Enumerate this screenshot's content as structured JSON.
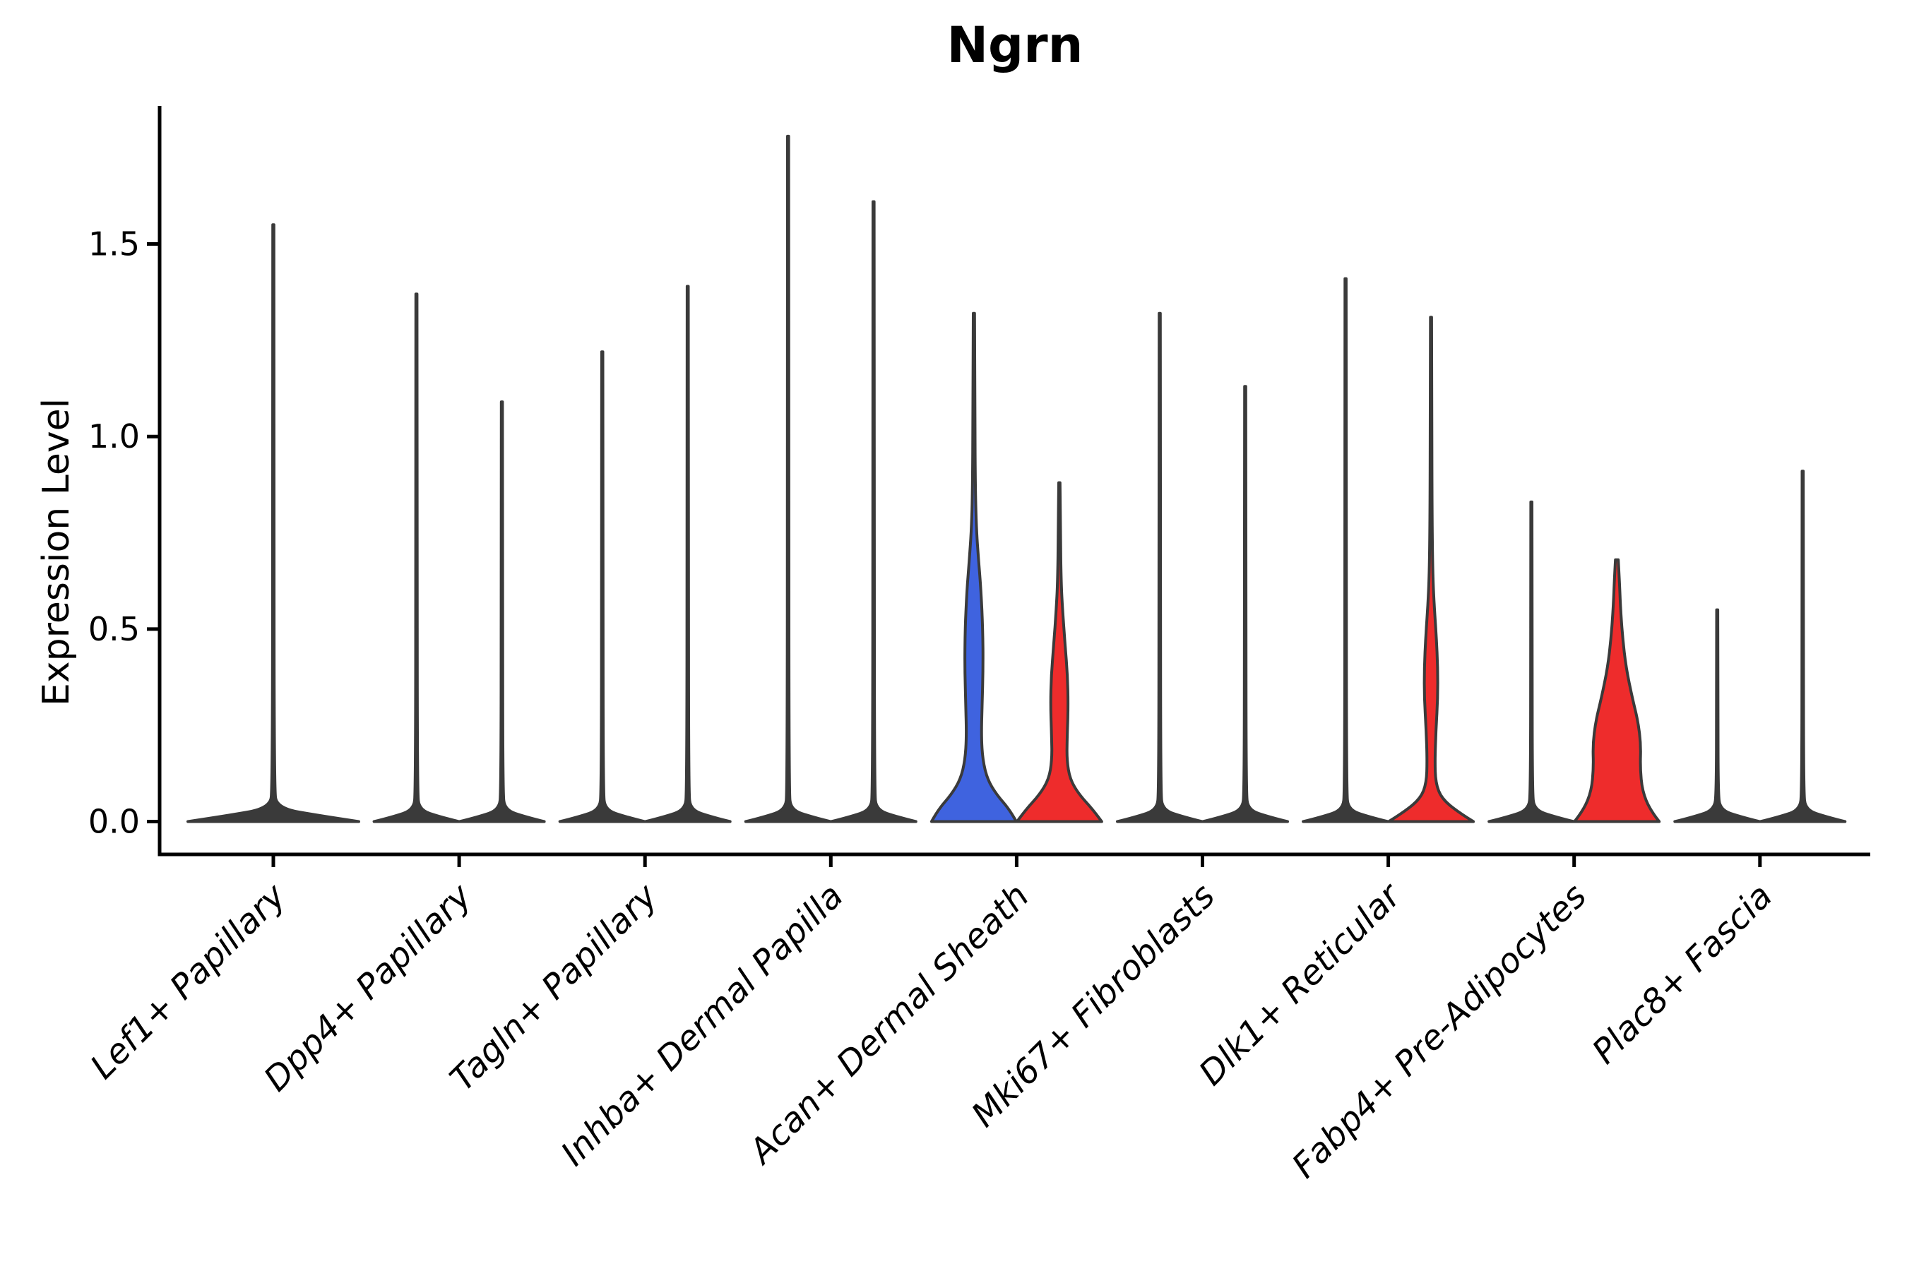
{
  "title": "Ngrn",
  "chart_data": {
    "type": "violin",
    "title": "Ngrn",
    "xlabel": "",
    "ylabel": "Expression Level",
    "y_ticks": [
      "0.0",
      "0.5",
      "1.0",
      "1.5"
    ],
    "ylim": [
      -0.09,
      1.86
    ],
    "grid": false,
    "legend_position": "none",
    "colors": {
      "highlight_blue": "#3F63DF",
      "highlight_red": "#EE2C2C",
      "violin_default": "#3A3A3A",
      "outline": "#3A3A3A",
      "axis": "#000000"
    },
    "categories": [
      {
        "label": "Lef1+ Papillary",
        "violins": [
          {
            "side": "center",
            "color": "#3A3A3A",
            "max_expression": 1.55,
            "width_profile": [
              [
                0,
                121
              ],
              [
                0.015,
                66
              ],
              [
                0.035,
                5
              ],
              [
                0.09,
                1.3
              ],
              [
                0.85,
                1.0
              ],
              [
                1.55,
                0.8
              ]
            ]
          }
        ]
      },
      {
        "label": "Dpp4+ Papillary",
        "violins": [
          {
            "side": "left",
            "color": "#3A3A3A",
            "max_expression": 1.37,
            "width_profile": [
              [
                0,
                60
              ],
              [
                0.012,
                34
              ],
              [
                0.03,
                4
              ],
              [
                0.08,
                1.3
              ],
              [
                0.75,
                1.0
              ],
              [
                1.37,
                0.8
              ]
            ]
          },
          {
            "side": "right",
            "color": "#3A3A3A",
            "max_expression": 1.09,
            "width_profile": [
              [
                0,
                60
              ],
              [
                0.012,
                34
              ],
              [
                0.03,
                4
              ],
              [
                0.08,
                1.3
              ],
              [
                0.6,
                1.0
              ],
              [
                1.09,
                0.8
              ]
            ]
          }
        ]
      },
      {
        "label": "Tagln+ Papillary",
        "violins": [
          {
            "side": "left",
            "color": "#3A3A3A",
            "max_expression": 1.22,
            "width_profile": [
              [
                0,
                60
              ],
              [
                0.012,
                34
              ],
              [
                0.03,
                4
              ],
              [
                0.08,
                1.3
              ],
              [
                0.67,
                1.0
              ],
              [
                1.22,
                0.8
              ]
            ]
          },
          {
            "side": "right",
            "color": "#3A3A3A",
            "max_expression": 1.39,
            "width_profile": [
              [
                0,
                60
              ],
              [
                0.012,
                34
              ],
              [
                0.03,
                4
              ],
              [
                0.08,
                1.3
              ],
              [
                0.76,
                1.0
              ],
              [
                1.39,
                0.8
              ]
            ]
          }
        ]
      },
      {
        "label": "Inhba+ Dermal Papilla",
        "violins": [
          {
            "side": "left",
            "color": "#3A3A3A",
            "max_expression": 1.78,
            "width_profile": [
              [
                0,
                60
              ],
              [
                0.012,
                34
              ],
              [
                0.03,
                4
              ],
              [
                0.08,
                1.3
              ],
              [
                0.98,
                1.0
              ],
              [
                1.78,
                0.8
              ]
            ]
          },
          {
            "side": "right",
            "color": "#3A3A3A",
            "max_expression": 1.61,
            "width_profile": [
              [
                0,
                60
              ],
              [
                0.012,
                34
              ],
              [
                0.03,
                4
              ],
              [
                0.08,
                1.3
              ],
              [
                0.89,
                1.0
              ],
              [
                1.61,
                0.8
              ]
            ]
          }
        ]
      },
      {
        "label": "Acan+ Dermal Sheath",
        "violins": [
          {
            "side": "left",
            "color": "#3F63DF",
            "max_expression": 1.32,
            "width_profile": [
              [
                0,
                60
              ],
              [
                0.03,
                51
              ],
              [
                0.07,
                32
              ],
              [
                0.11,
                19
              ],
              [
                0.16,
                12.5
              ],
              [
                0.22,
                10.5
              ],
              [
                0.3,
                11.5
              ],
              [
                0.4,
                13
              ],
              [
                0.5,
                12.5
              ],
              [
                0.6,
                10
              ],
              [
                0.68,
                6.5
              ],
              [
                0.76,
                3.5
              ],
              [
                0.86,
                2
              ],
              [
                1.05,
                1.4
              ],
              [
                1.32,
                0.9
              ]
            ]
          },
          {
            "side": "right",
            "color": "#EE2C2C",
            "max_expression": 0.88,
            "width_profile": [
              [
                0,
                60
              ],
              [
                0.03,
                48
              ],
              [
                0.07,
                28
              ],
              [
                0.11,
                15
              ],
              [
                0.16,
                10.5
              ],
              [
                0.22,
                11
              ],
              [
                0.3,
                12.5
              ],
              [
                0.38,
                11.5
              ],
              [
                0.46,
                8
              ],
              [
                0.55,
                4.5
              ],
              [
                0.62,
                2.5
              ],
              [
                0.75,
                1.5
              ],
              [
                0.88,
                0.9
              ]
            ]
          }
        ]
      },
      {
        "label": "Mki67+ Fibroblasts",
        "violins": [
          {
            "side": "left",
            "color": "#3A3A3A",
            "max_expression": 1.32,
            "width_profile": [
              [
                0,
                60
              ],
              [
                0.012,
                34
              ],
              [
                0.03,
                4
              ],
              [
                0.08,
                1.3
              ],
              [
                0.73,
                1.0
              ],
              [
                1.32,
                0.8
              ]
            ]
          },
          {
            "side": "right",
            "color": "#3A3A3A",
            "max_expression": 1.13,
            "width_profile": [
              [
                0,
                60
              ],
              [
                0.012,
                34
              ],
              [
                0.03,
                4
              ],
              [
                0.08,
                1.3
              ],
              [
                0.62,
                1.0
              ],
              [
                1.13,
                0.8
              ]
            ]
          }
        ]
      },
      {
        "label": "Dlk1+ Reticular",
        "violins": [
          {
            "side": "left",
            "color": "#3A3A3A",
            "max_expression": 1.41,
            "width_profile": [
              [
                0,
                60
              ],
              [
                0.012,
                34
              ],
              [
                0.03,
                4
              ],
              [
                0.08,
                1.3
              ],
              [
                0.78,
                1.0
              ],
              [
                1.41,
                0.8
              ]
            ]
          },
          {
            "side": "right",
            "color": "#EE2C2C",
            "max_expression": 1.31,
            "width_profile": [
              [
                0,
                60
              ],
              [
                0.025,
                38
              ],
              [
                0.06,
                15
              ],
              [
                0.1,
                6.5
              ],
              [
                0.16,
                5.5
              ],
              [
                0.24,
                7
              ],
              [
                0.32,
                9.5
              ],
              [
                0.4,
                9.5
              ],
              [
                0.48,
                7.5
              ],
              [
                0.56,
                4.5
              ],
              [
                0.64,
                2.5
              ],
              [
                0.78,
                1.5
              ],
              [
                1.05,
                1.1
              ],
              [
                1.31,
                0.8
              ]
            ]
          }
        ]
      },
      {
        "label": "Fabp4+ Pre-Adipocytes",
        "violins": [
          {
            "side": "left",
            "color": "#3A3A3A",
            "max_expression": 0.83,
            "width_profile": [
              [
                0,
                60
              ],
              [
                0.012,
                34
              ],
              [
                0.03,
                4
              ],
              [
                0.08,
                1.3
              ],
              [
                0.46,
                1.0
              ],
              [
                0.83,
                0.8
              ]
            ]
          },
          {
            "side": "right",
            "color": "#EE2C2C",
            "max_expression": 0.68,
            "width_profile": [
              [
                0,
                60
              ],
              [
                0.03,
                47
              ],
              [
                0.08,
                36
              ],
              [
                0.14,
                33
              ],
              [
                0.2,
                34
              ],
              [
                0.26,
                30
              ],
              [
                0.32,
                22
              ],
              [
                0.4,
                13
              ],
              [
                0.48,
                8
              ],
              [
                0.56,
                5
              ],
              [
                0.63,
                3.5
              ],
              [
                0.68,
                2
              ]
            ]
          }
        ]
      },
      {
        "label": "Plac8+ Fascia",
        "violins": [
          {
            "side": "left",
            "color": "#3A3A3A",
            "max_expression": 0.55,
            "width_profile": [
              [
                0,
                60
              ],
              [
                0.012,
                34
              ],
              [
                0.03,
                4
              ],
              [
                0.08,
                1.3
              ],
              [
                0.3,
                1.0
              ],
              [
                0.55,
                0.8
              ]
            ]
          },
          {
            "side": "right",
            "color": "#3A3A3A",
            "max_expression": 0.91,
            "width_profile": [
              [
                0,
                60
              ],
              [
                0.012,
                34
              ],
              [
                0.03,
                4
              ],
              [
                0.08,
                1.3
              ],
              [
                0.5,
                1.0
              ],
              [
                0.91,
                0.8
              ]
            ]
          }
        ]
      }
    ]
  }
}
